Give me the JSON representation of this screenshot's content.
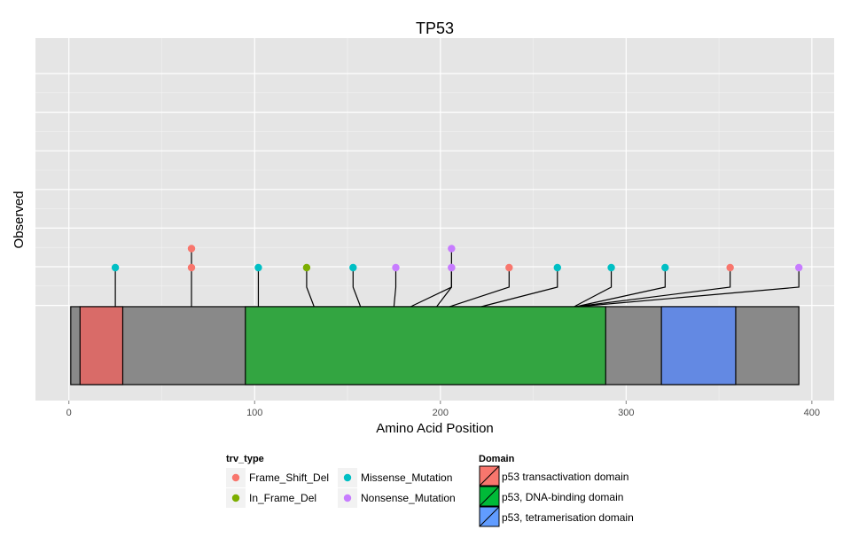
{
  "chart_data": {
    "type": "lollipop",
    "title": "TP53",
    "xlabel": "Amino Acid Position",
    "ylabel": "Observed",
    "xlim": [
      -18,
      412
    ],
    "x_ticks": [
      0,
      100,
      200,
      300,
      400
    ],
    "protein_length": 393,
    "grid": true,
    "legend_position": "bottom",
    "trv_type_legend": {
      "title": "trv_type",
      "entries": [
        {
          "label": "Frame_Shift_Del",
          "color": "#F8766D"
        },
        {
          "label": "In_Frame_Del",
          "color": "#7CAE00"
        },
        {
          "label": "Missense_Mutation",
          "color": "#00BFC4"
        },
        {
          "label": "Nonsense_Mutation",
          "color": "#C77CFF"
        }
      ]
    },
    "domain_legend": {
      "title": "Domain",
      "entries": [
        {
          "label": "p53 transactivation domain",
          "color": "#F8766D"
        },
        {
          "label": "p53, DNA-binding domain",
          "color": "#00BA38"
        },
        {
          "label": "p53, tetramerisation domain",
          "color": "#619CFF"
        }
      ]
    },
    "domains": [
      {
        "name": "p53 transactivation domain",
        "start": 6,
        "end": 29,
        "color": "#D96B68"
      },
      {
        "name": "p53, DNA-binding domain",
        "start": 95,
        "end": 289,
        "color": "#33A541"
      },
      {
        "name": "p53, tetramerisation domain",
        "start": 319,
        "end": 359,
        "color": "#6389E3"
      }
    ],
    "mutations": [
      {
        "position": 25,
        "display_position": 25,
        "count": 1,
        "type": "Missense_Mutation"
      },
      {
        "position": 66,
        "display_position": 66,
        "count": 2,
        "type": "Frame_Shift_Del"
      },
      {
        "position": 102,
        "display_position": 102,
        "count": 1,
        "type": "Missense_Mutation"
      },
      {
        "position": 132,
        "display_position": 128,
        "count": 1,
        "type": "In_Frame_Del"
      },
      {
        "position": 157,
        "display_position": 153,
        "count": 1,
        "type": "Missense_Mutation"
      },
      {
        "position": 175,
        "display_position": 176,
        "count": 1,
        "type": "Nonsense_Mutation"
      },
      {
        "position": 184,
        "display_position": 206,
        "count": 1,
        "type": "Nonsense_Mutation"
      },
      {
        "position": 198,
        "display_position": 206,
        "count": 2,
        "type": "Nonsense_Mutation"
      },
      {
        "position": 205,
        "display_position": 237,
        "count": 1,
        "type": "Frame_Shift_Del"
      },
      {
        "position": 222,
        "display_position": 263,
        "count": 1,
        "type": "Missense_Mutation"
      },
      {
        "position": 272,
        "display_position": 292,
        "count": 1,
        "type": "Missense_Mutation"
      },
      {
        "position": 273,
        "display_position": 321,
        "count": 1,
        "type": "Missense_Mutation"
      },
      {
        "position": 273,
        "display_position": 356,
        "count": 1,
        "type": "Frame_Shift_Del"
      },
      {
        "position": 274,
        "display_position": 393,
        "count": 1,
        "type": "Nonsense_Mutation"
      }
    ]
  }
}
